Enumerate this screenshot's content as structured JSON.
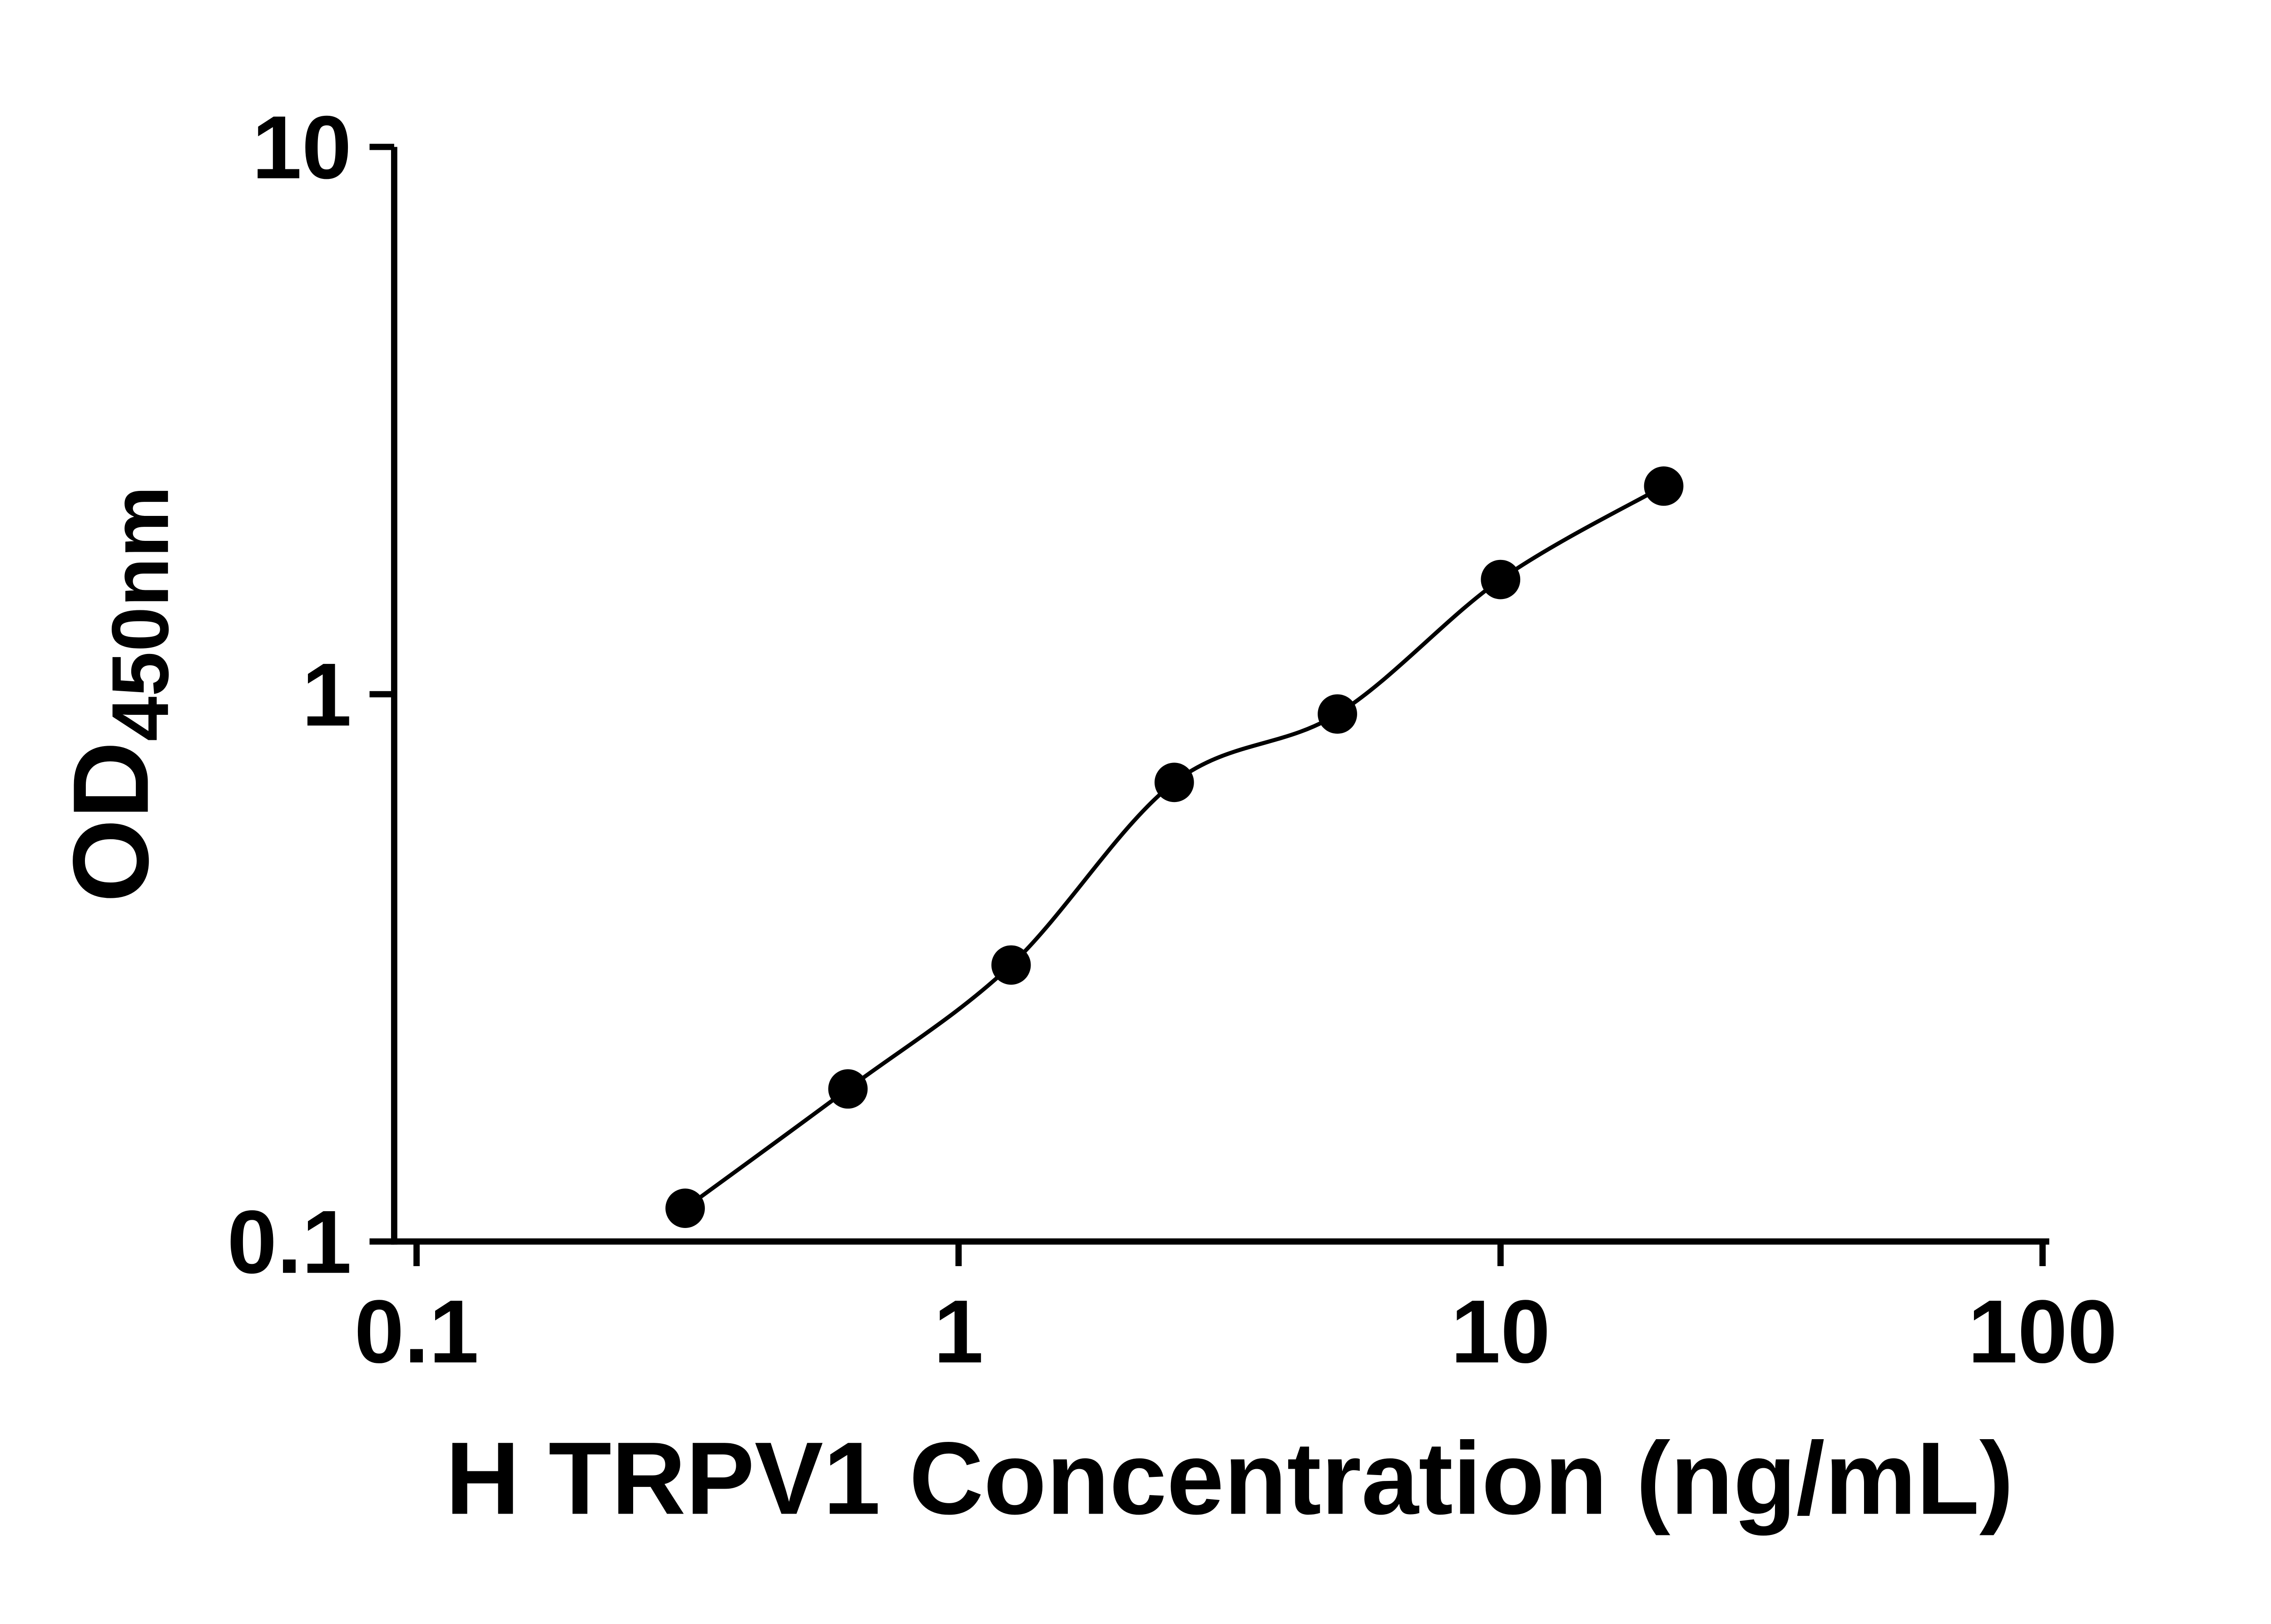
{
  "chart_data": {
    "type": "scatter",
    "title": "",
    "xlabel": "H TRPV1 Concentration (ng/mL)",
    "ylabel": "OD",
    "ylabel_subscript": "450nm",
    "x_scale": "log",
    "y_scale": "log",
    "xlim": [
      0.1,
      100
    ],
    "ylim": [
      0.1,
      10
    ],
    "x_ticks": [
      0.1,
      1,
      10,
      100
    ],
    "x_tick_labels": [
      "0.1",
      "1",
      "10",
      "100"
    ],
    "y_ticks": [
      0.1,
      1,
      10
    ],
    "y_tick_labels": [
      "0.1",
      "1",
      "10"
    ],
    "grid": false,
    "legend": false,
    "marker_color": "#000000",
    "line_color": "#000000",
    "axis_color": "#000000",
    "points": [
      {
        "x": 0.313,
        "y": 0.115
      },
      {
        "x": 0.625,
        "y": 0.19
      },
      {
        "x": 1.25,
        "y": 0.32
      },
      {
        "x": 2.5,
        "y": 0.69
      },
      {
        "x": 5,
        "y": 0.92
      },
      {
        "x": 10,
        "y": 1.62
      },
      {
        "x": 20,
        "y": 2.4
      }
    ],
    "curve": "smooth fit through data points"
  }
}
